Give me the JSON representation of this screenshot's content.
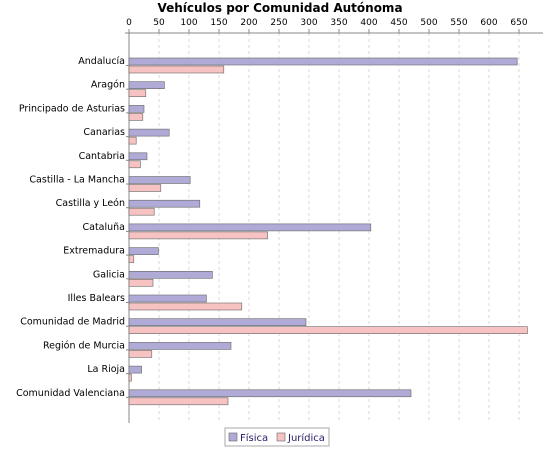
{
  "chart_data": {
    "type": "bar",
    "orientation": "horizontal",
    "title": "Vehículos por Comunidad Autónoma",
    "xlabel": "",
    "ylabel": "",
    "xlim": [
      0,
      690
    ],
    "x_ticks": [
      0,
      50,
      100,
      150,
      200,
      250,
      300,
      350,
      400,
      450,
      500,
      550,
      600,
      650
    ],
    "x_axis_position": "top",
    "grid": true,
    "legend_position": "bottom",
    "categories": [
      "Andalucía",
      "Aragón",
      "Principado de Asturias",
      "Canarias",
      "Cantabria",
      "Castilla - La Mancha",
      "Castilla y León",
      "Cataluña",
      "Extremadura",
      "Galicia",
      "Illes Balears",
      "Comunidad de Madrid",
      "Región de Murcia",
      "La Rioja",
      "Comunidad Valenciana"
    ],
    "series": [
      {
        "name": "Física",
        "color": "#b0aad6",
        "values": [
          647,
          59,
          25,
          67,
          30,
          102,
          118,
          403,
          49,
          139,
          129,
          295,
          170,
          21,
          470
        ]
      },
      {
        "name": "Jurídica",
        "color": "#f7c2c2",
        "values": [
          158,
          28,
          23,
          12,
          19,
          53,
          42,
          231,
          8,
          40,
          188,
          664,
          38,
          4,
          165
        ]
      }
    ]
  }
}
